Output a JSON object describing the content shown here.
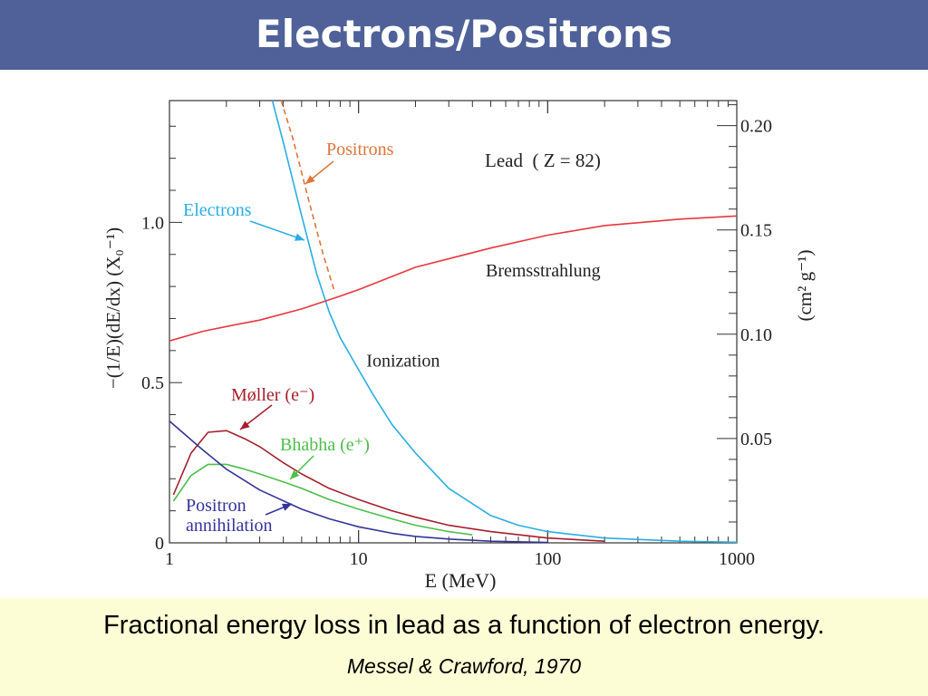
{
  "slide": {
    "title": "Electrons/Positrons",
    "caption": "Fractional energy loss in lead as a function of electron energy.",
    "citation": "Messel & Crawford, 1970"
  },
  "colors": {
    "title_bar": "#4f6198",
    "caption_bg": "#fdfdd5",
    "electrons": "#29aee3",
    "positrons": "#e0743a",
    "bremsstrahlung": "#e8373f",
    "moller": "#a51f2c",
    "bhabha": "#4cbf4a",
    "annihilation": "#35349a"
  },
  "chart_data": {
    "type": "line",
    "title": "Lead  ( Z = 82)",
    "xlabel": "E (MeV)",
    "ylabel_left": "−(1/E)(dE/dx) (X₀⁻¹)",
    "ylabel_right": "(cm² g⁻¹)",
    "xscale": "log",
    "xlim": [
      1,
      1000
    ],
    "ylim": [
      0,
      1.38
    ],
    "ylim_right": [
      0,
      0.212
    ],
    "x_ticks": [
      1,
      10,
      100,
      1000
    ],
    "x_tick_labels": [
      "1",
      "10",
      "100",
      "1000"
    ],
    "y_ticks": [
      0,
      0.5,
      1.0
    ],
    "y_tick_labels": [
      "0",
      "0.5",
      "1.0"
    ],
    "y2_ticks": [
      0.05,
      0.1,
      0.15,
      0.2
    ],
    "y2_tick_labels": [
      "0.05",
      "0.10",
      "0.15",
      "0.20"
    ],
    "series": [
      {
        "name": "Electrons",
        "label_lines": [
          "Electrons"
        ],
        "color": "#29aee3",
        "dashed": false,
        "x": [
          3.5,
          4,
          5,
          6,
          7,
          8,
          10,
          12,
          15,
          20,
          30,
          50,
          70,
          100,
          200,
          500,
          1000
        ],
        "y": [
          1.38,
          1.25,
          1.02,
          0.84,
          0.72,
          0.64,
          0.54,
          0.46,
          0.37,
          0.28,
          0.17,
          0.085,
          0.055,
          0.035,
          0.015,
          0.005,
          0.002
        ]
      },
      {
        "name": "Positrons",
        "label_lines": [
          "Positrons"
        ],
        "color": "#e0743a",
        "dashed": true,
        "x": [
          3.9,
          4.5,
          5.5,
          6.5,
          7.5
        ],
        "y": [
          1.38,
          1.26,
          1.06,
          0.9,
          0.78
        ]
      },
      {
        "name": "Bremsstrahlung",
        "label_lines": [
          "Bremsstrahlung"
        ],
        "color": "#e8373f",
        "dashed": false,
        "x": [
          1,
          1.5,
          2,
          3,
          5,
          8,
          10,
          20,
          50,
          100,
          200,
          500,
          1000
        ],
        "y": [
          0.63,
          0.66,
          0.675,
          0.695,
          0.73,
          0.77,
          0.79,
          0.86,
          0.92,
          0.96,
          0.99,
          1.01,
          1.02
        ]
      },
      {
        "name": "Møller (e⁻)",
        "label_lines": [
          "Møller (e⁻)"
        ],
        "color": "#a51f2c",
        "dashed": false,
        "x": [
          1.05,
          1.3,
          1.6,
          2,
          2.5,
          3,
          4,
          5,
          7,
          10,
          15,
          20,
          30,
          50,
          100,
          200
        ],
        "y": [
          0.15,
          0.28,
          0.345,
          0.35,
          0.325,
          0.3,
          0.25,
          0.215,
          0.17,
          0.135,
          0.1,
          0.08,
          0.055,
          0.035,
          0.015,
          0.005
        ]
      },
      {
        "name": "Bhabha (e⁺)",
        "label_lines": [
          "Bhabha (e⁺)"
        ],
        "color": "#4cbf4a",
        "dashed": false,
        "x": [
          1.05,
          1.3,
          1.6,
          2,
          2.5,
          3,
          4,
          5,
          7,
          10,
          15,
          20,
          30,
          40
        ],
        "y": [
          0.13,
          0.21,
          0.245,
          0.245,
          0.23,
          0.215,
          0.19,
          0.17,
          0.135,
          0.105,
          0.075,
          0.055,
          0.035,
          0.025
        ]
      },
      {
        "name": "Positron annihilation",
        "label_lines": [
          "Positron",
          "annihilation"
        ],
        "color": "#35349a",
        "dashed": false,
        "x": [
          1,
          1.5,
          2,
          3,
          5,
          7,
          10,
          15,
          20,
          30,
          50,
          100
        ],
        "y": [
          0.38,
          0.29,
          0.23,
          0.165,
          0.105,
          0.075,
          0.05,
          0.03,
          0.02,
          0.012,
          0.005,
          0.001
        ]
      }
    ],
    "annotations": [
      {
        "text": "Ionization",
        "x": 11,
        "y": 0.57
      }
    ]
  }
}
